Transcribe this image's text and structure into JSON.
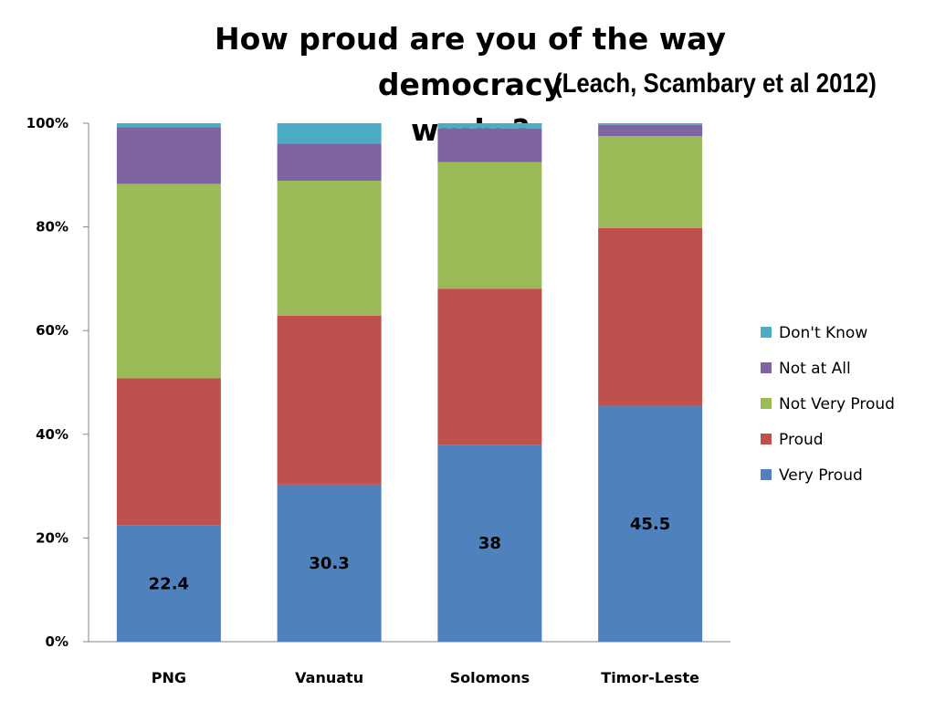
{
  "chart_data": {
    "type": "bar",
    "stacked": true,
    "title_line1": "How proud are you of the way democracy",
    "title_line2": "works?",
    "subtitle": "(Leach, Scambary et al 2012)",
    "xlabel": "",
    "ylabel": "",
    "categories": [
      "PNG",
      "Vanuatu",
      "Solomons",
      "Timor-Leste"
    ],
    "ylim": [
      0,
      100
    ],
    "yticks": [
      "0%",
      "20%",
      "40%",
      "60%",
      "80%",
      "100%"
    ],
    "grid": false,
    "legend_position": "right",
    "series": [
      {
        "name": "Very Proud",
        "color": "#4F81BD",
        "values": [
          22.4,
          30.3,
          38,
          45.5
        ],
        "labels": [
          "22.4",
          "30.3",
          "38",
          "45.5"
        ]
      },
      {
        "name": "Proud",
        "color": "#C0504D",
        "values": [
          28.4,
          32.6,
          30.1,
          34.3
        ]
      },
      {
        "name": "Not Very Proud",
        "color": "#9BBB59",
        "values": [
          37.5,
          26.0,
          24.4,
          17.7
        ]
      },
      {
        "name": "Not at All",
        "color": "#8064A2",
        "values": [
          10.9,
          7.2,
          6.5,
          2.2
        ]
      },
      {
        "name": "Don't Know",
        "color": "#4BACC6",
        "values": [
          0.8,
          3.9,
          1.0,
          0.3
        ]
      }
    ]
  }
}
